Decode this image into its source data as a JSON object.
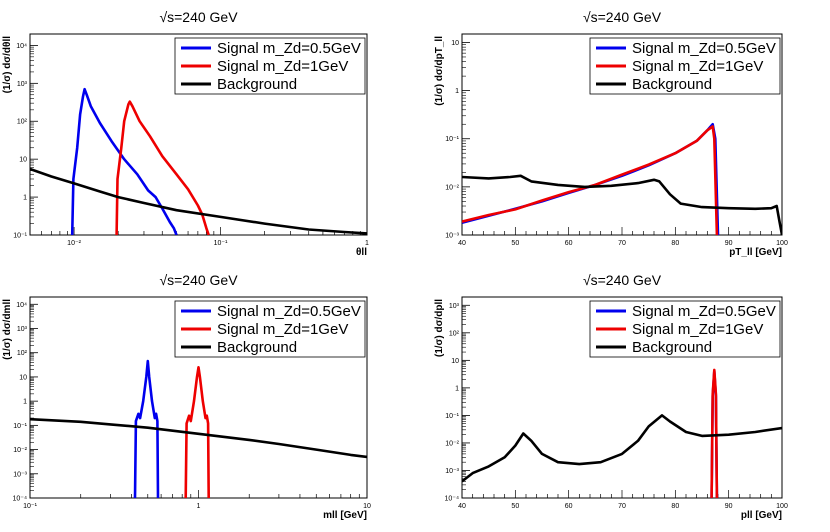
{
  "chart_data": [
    {
      "type": "line",
      "title": "√s=240 GeV",
      "xlabel": "θll",
      "ylabel": "(1/σ) dσ/dθll",
      "xscale": "log",
      "yscale": "log",
      "xlim": [
        0.005,
        1
      ],
      "ylim": [
        0.1,
        20000
      ],
      "xtick_labels": [
        "10⁻²",
        "10⁻¹",
        "1"
      ],
      "ytick_labels": [
        "10⁻¹",
        "1",
        "10",
        "10²",
        "10³",
        "10⁴"
      ],
      "legend": {
        "position": "top-right",
        "entries": [
          "Signal m_Zd=0.5GeV",
          "Signal m_Zd=1GeV",
          "Background"
        ]
      },
      "series": [
        {
          "name": "Signal m_Zd=0.5GeV",
          "color": "#0000ee",
          "points": [
            [
              0.0097,
              0.1
            ],
            [
              0.0099,
              3
            ],
            [
              0.0105,
              20
            ],
            [
              0.011,
              150
            ],
            [
              0.0115,
              450
            ],
            [
              0.0118,
              700
            ],
            [
              0.0122,
              500
            ],
            [
              0.013,
              250
            ],
            [
              0.015,
              90
            ],
            [
              0.018,
              30
            ],
            [
              0.022,
              10
            ],
            [
              0.027,
              4
            ],
            [
              0.032,
              1.5
            ],
            [
              0.036,
              1
            ],
            [
              0.04,
              0.5
            ],
            [
              0.045,
              0.22
            ],
            [
              0.048,
              0.15
            ],
            [
              0.05,
              0.1
            ]
          ]
        },
        {
          "name": "Signal m_Zd=1GeV",
          "color": "#ee0000",
          "points": [
            [
              0.0195,
              0.1
            ],
            [
              0.0198,
              3
            ],
            [
              0.021,
              20
            ],
            [
              0.022,
              100
            ],
            [
              0.0235,
              280
            ],
            [
              0.024,
              330
            ],
            [
              0.025,
              250
            ],
            [
              0.028,
              100
            ],
            [
              0.033,
              40
            ],
            [
              0.04,
              12
            ],
            [
              0.05,
              4
            ],
            [
              0.06,
              1.6
            ],
            [
              0.07,
              0.6
            ],
            [
              0.075,
              0.35
            ],
            [
              0.08,
              0.15
            ],
            [
              0.083,
              0.1
            ]
          ]
        },
        {
          "name": "Background",
          "color": "#000000",
          "points": [
            [
              0.005,
              5.5
            ],
            [
              0.007,
              3.5
            ],
            [
              0.01,
              2.3
            ],
            [
              0.015,
              1.4
            ],
            [
              0.02,
              1.0
            ],
            [
              0.03,
              0.7
            ],
            [
              0.05,
              0.45
            ],
            [
              0.1,
              0.3
            ],
            [
              0.2,
              0.2
            ],
            [
              0.4,
              0.14
            ],
            [
              0.7,
              0.12
            ],
            [
              1.0,
              0.11
            ]
          ]
        }
      ]
    },
    {
      "type": "line",
      "title": "√s=240 GeV",
      "xlabel": "pT_ll [GeV]",
      "ylabel": "(1/σ) dσ/dpT_ll",
      "xscale": "linear",
      "yscale": "log",
      "xlim": [
        40,
        100
      ],
      "ylim": [
        0.001,
        15
      ],
      "xtick_labels": [
        "40",
        "50",
        "60",
        "70",
        "80",
        "90",
        "100"
      ],
      "ytick_labels": [
        "10⁻³",
        "10⁻²",
        "10⁻¹",
        "1",
        "10"
      ],
      "legend": {
        "position": "top-right",
        "entries": [
          "Signal m_Zd=0.5GeV",
          "Signal m_Zd=1GeV",
          "Background"
        ]
      },
      "series": [
        {
          "name": "Signal m_Zd=0.5GeV",
          "color": "#0000ee",
          "points": [
            [
              40,
              0.0018
            ],
            [
              45,
              0.0025
            ],
            [
              50,
              0.0035
            ],
            [
              55,
              0.005
            ],
            [
              60,
              0.0075
            ],
            [
              65,
              0.011
            ],
            [
              70,
              0.017
            ],
            [
              75,
              0.028
            ],
            [
              80,
              0.05
            ],
            [
              84,
              0.09
            ],
            [
              86,
              0.15
            ],
            [
              87,
              0.2
            ],
            [
              87.5,
              0.1
            ],
            [
              88,
              0.001
            ]
          ]
        },
        {
          "name": "Signal m_Zd=1GeV",
          "color": "#ee0000",
          "points": [
            [
              40,
              0.0019
            ],
            [
              45,
              0.0026
            ],
            [
              50,
              0.0034
            ],
            [
              55,
              0.0052
            ],
            [
              60,
              0.0078
            ],
            [
              65,
              0.011
            ],
            [
              70,
              0.018
            ],
            [
              75,
              0.029
            ],
            [
              80,
              0.05
            ],
            [
              84,
              0.09
            ],
            [
              86,
              0.15
            ],
            [
              87,
              0.18
            ],
            [
              87.3,
              0.1
            ],
            [
              87.8,
              0.001
            ]
          ]
        },
        {
          "name": "Background",
          "color": "#000000",
          "points": [
            [
              40,
              0.016
            ],
            [
              45,
              0.015
            ],
            [
              49,
              0.016
            ],
            [
              51,
              0.017
            ],
            [
              53,
              0.013
            ],
            [
              58,
              0.011
            ],
            [
              63,
              0.01
            ],
            [
              68,
              0.0105
            ],
            [
              73,
              0.012
            ],
            [
              76,
              0.014
            ],
            [
              77,
              0.013
            ],
            [
              79,
              0.007
            ],
            [
              81,
              0.0045
            ],
            [
              85,
              0.0038
            ],
            [
              90,
              0.0036
            ],
            [
              95,
              0.0035
            ],
            [
              98,
              0.0036
            ],
            [
              99,
              0.004
            ],
            [
              99.5,
              0.002
            ],
            [
              100,
              0.001
            ]
          ]
        }
      ]
    },
    {
      "type": "line",
      "title": "√s=240 GeV",
      "xlabel": "mll [GeV]",
      "ylabel": "(1/σ) dσ/dmll",
      "xscale": "log",
      "yscale": "log",
      "xlim": [
        0.1,
        10
      ],
      "ylim": [
        0.0001,
        20000
      ],
      "xtick_labels": [
        "10⁻¹",
        "1",
        "10"
      ],
      "ytick_labels": [
        "10⁻⁴",
        "10⁻³",
        "10⁻²",
        "10⁻¹",
        "1",
        "10",
        "10²",
        "10³",
        "10⁴"
      ],
      "legend": {
        "position": "top-right",
        "entries": [
          "Signal m_Zd=0.5GeV",
          "Signal m_Zd=1GeV",
          "Background"
        ]
      },
      "series": [
        {
          "name": "Signal m_Zd=0.5GeV",
          "color": "#0000ee",
          "points": [
            [
              0.42,
              0.0001
            ],
            [
              0.425,
              0.15
            ],
            [
              0.44,
              0.3
            ],
            [
              0.45,
              0.2
            ],
            [
              0.47,
              1
            ],
            [
              0.49,
              10
            ],
            [
              0.5,
              45
            ],
            [
              0.51,
              10
            ],
            [
              0.53,
              1
            ],
            [
              0.55,
              0.2
            ],
            [
              0.56,
              0.3
            ],
            [
              0.57,
              0.15
            ],
            [
              0.575,
              0.0001
            ]
          ]
        },
        {
          "name": "Signal m_Zd=1GeV",
          "color": "#ee0000",
          "points": [
            [
              0.84,
              0.0001
            ],
            [
              0.85,
              0.12
            ],
            [
              0.88,
              0.25
            ],
            [
              0.9,
              0.15
            ],
            [
              0.94,
              1
            ],
            [
              0.98,
              10
            ],
            [
              1.0,
              25
            ],
            [
              1.02,
              10
            ],
            [
              1.06,
              1
            ],
            [
              1.1,
              0.2
            ],
            [
              1.12,
              0.25
            ],
            [
              1.14,
              0.12
            ],
            [
              1.15,
              0.0001
            ]
          ]
        },
        {
          "name": "Background",
          "color": "#000000",
          "points": [
            [
              0.1,
              0.18
            ],
            [
              0.2,
              0.14
            ],
            [
              0.3,
              0.11
            ],
            [
              0.5,
              0.08
            ],
            [
              1,
              0.045
            ],
            [
              2,
              0.025
            ],
            [
              3,
              0.017
            ],
            [
              5,
              0.01
            ],
            [
              8,
              0.006
            ],
            [
              10,
              0.005
            ]
          ]
        }
      ]
    },
    {
      "type": "line",
      "title": "√s=240 GeV",
      "xlabel": "pll [GeV]",
      "ylabel": "(1/σ) dσ/dpll",
      "xscale": "linear",
      "yscale": "log",
      "xlim": [
        40,
        100
      ],
      "ylim": [
        0.0001,
        2000
      ],
      "xtick_labels": [
        "40",
        "50",
        "60",
        "70",
        "80",
        "90",
        "100"
      ],
      "ytick_labels": [
        "10⁻⁴",
        "10⁻³",
        "10⁻²",
        "10⁻¹",
        "1",
        "10",
        "10²",
        "10³"
      ],
      "legend": {
        "position": "top-right",
        "entries": [
          "Signal m_Zd=0.5GeV",
          "Signal m_Zd=1GeV",
          "Background"
        ]
      },
      "series": [
        {
          "name": "Signal m_Zd=0.5GeV",
          "color": "#0000ee",
          "points": [
            [
              86.8,
              0.0001
            ],
            [
              87,
              0.5
            ],
            [
              87.3,
              4
            ],
            [
              87.6,
              0.5
            ],
            [
              87.8,
              0.0001
            ]
          ]
        },
        {
          "name": "Signal m_Zd=1GeV",
          "color": "#ee0000",
          "points": [
            [
              86.8,
              0.0001
            ],
            [
              87,
              0.6
            ],
            [
              87.3,
              4.5
            ],
            [
              87.6,
              0.6
            ],
            [
              87.8,
              0.0001
            ]
          ]
        },
        {
          "name": "Background",
          "color": "#000000",
          "points": [
            [
              40,
              0.0004
            ],
            [
              42,
              0.0008
            ],
            [
              45,
              0.0014
            ],
            [
              48,
              0.003
            ],
            [
              50,
              0.008
            ],
            [
              51.5,
              0.022
            ],
            [
              53,
              0.012
            ],
            [
              55,
              0.004
            ],
            [
              58,
              0.002
            ],
            [
              62,
              0.0017
            ],
            [
              66,
              0.002
            ],
            [
              70,
              0.004
            ],
            [
              73,
              0.012
            ],
            [
              75,
              0.04
            ],
            [
              77.5,
              0.1
            ],
            [
              79,
              0.06
            ],
            [
              82,
              0.025
            ],
            [
              85,
              0.018
            ],
            [
              90,
              0.02
            ],
            [
              95,
              0.025
            ],
            [
              100,
              0.035
            ]
          ]
        }
      ]
    }
  ]
}
